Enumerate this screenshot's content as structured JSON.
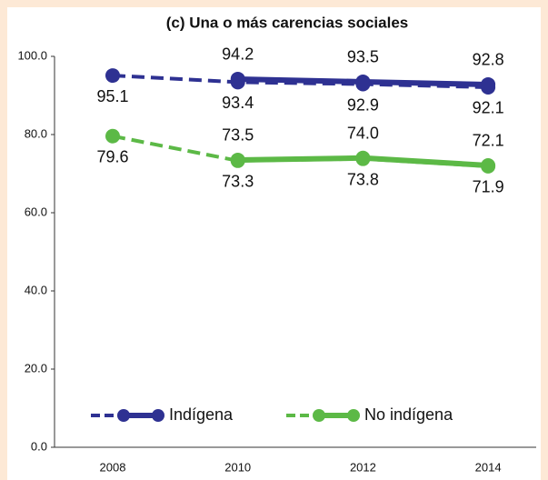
{
  "chart_data": {
    "type": "line",
    "title": "(c) Una o más carencias sociales",
    "categories": [
      "2008",
      "2010",
      "2012",
      "2014"
    ],
    "series": [
      {
        "name": "Indígena",
        "color": "#2e3192",
        "values": [
          95.1,
          93.4,
          92.9,
          92.1
        ],
        "value_labels": [
          "95.1",
          "93.4",
          "92.9",
          "92.1"
        ],
        "revised_values": [
          null,
          94.2,
          93.5,
          92.8
        ],
        "revised_value_labels": [
          null,
          "94.2",
          "93.5",
          "92.8"
        ]
      },
      {
        "name": "No indígena",
        "color": "#5cb946",
        "values": [
          79.6,
          73.3,
          73.8,
          71.9
        ],
        "value_labels": [
          "79.6",
          "73.3",
          "73.8",
          "71.9"
        ],
        "revised_values": [
          null,
          73.5,
          74.0,
          72.1
        ],
        "revised_value_labels": [
          null,
          "73.5",
          "74.0",
          "72.1"
        ]
      }
    ],
    "ylim": [
      0,
      100
    ],
    "yticks": [
      {
        "value": 0,
        "label": "0.0"
      },
      {
        "value": 20,
        "label": "20.0"
      },
      {
        "value": 40,
        "label": "40.0"
      },
      {
        "value": 60,
        "label": "60.0"
      },
      {
        "value": 80,
        "label": "80.0"
      },
      {
        "value": 100,
        "label": "100.0"
      }
    ],
    "grid": false,
    "legend": "bottom"
  }
}
